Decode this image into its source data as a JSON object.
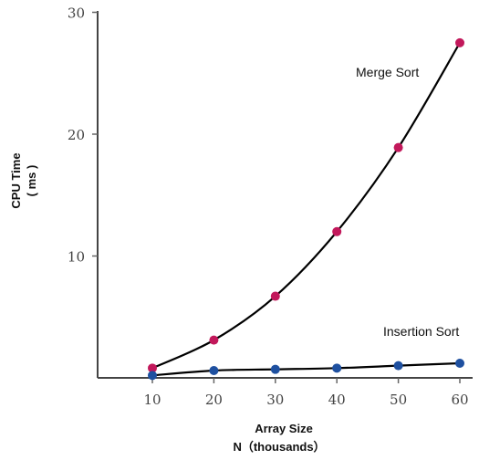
{
  "chart_data": {
    "type": "line",
    "title": "",
    "xlabel": "Array Size",
    "xlabel_line2": "N（thousands）",
    "ylabel": "CPU Time",
    "ylabel_line2": "( ms )",
    "x": [
      10,
      20,
      30,
      40,
      50,
      60
    ],
    "x_ticks": [
      "10",
      "20",
      "30",
      "40",
      "50",
      "60"
    ],
    "y_ticks": [
      "10",
      "20",
      "30"
    ],
    "xlim": [
      0,
      60
    ],
    "ylim": [
      0,
      30
    ],
    "grid": false,
    "legend": "none",
    "series": [
      {
        "name": "Merge Sort",
        "values": [
          0.8,
          3.1,
          6.7,
          12.0,
          18.9,
          27.5
        ],
        "marker_color": "#c2185b",
        "line_color": "#000000"
      },
      {
        "name": "Insertion Sort",
        "values": [
          0.2,
          0.6,
          0.7,
          0.8,
          1.0,
          1.2
        ],
        "marker_color": "#1e50a0",
        "line_color": "#000000"
      }
    ]
  }
}
